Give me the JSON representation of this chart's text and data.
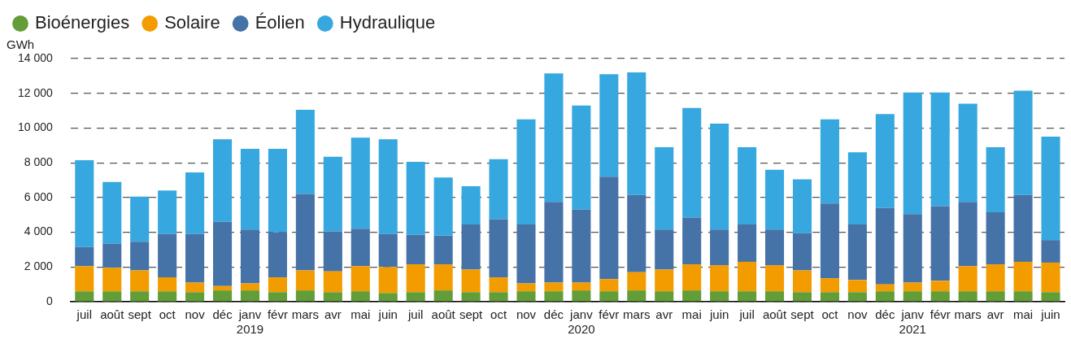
{
  "chart_data": {
    "type": "bar",
    "stacked": true,
    "ylabel": "GWh",
    "categories": [
      "juil",
      "août",
      "sept",
      "oct",
      "nov",
      "déc",
      "janv 2019",
      "févr",
      "mars",
      "avr",
      "mai",
      "juin",
      "juil",
      "août",
      "sept",
      "oct",
      "nov",
      "déc",
      "janv 2020",
      "févr",
      "mars",
      "avr",
      "mai",
      "juin",
      "juil",
      "août",
      "sept",
      "oct",
      "nov",
      "déc",
      "janv 2021",
      "févr",
      "mars",
      "avr",
      "mai",
      "juin"
    ],
    "series": [
      {
        "name": "Bioénergies",
        "color": "#629d38",
        "values": [
          600,
          600,
          600,
          600,
          550,
          650,
          650,
          550,
          650,
          550,
          600,
          500,
          550,
          650,
          550,
          550,
          600,
          600,
          650,
          600,
          650,
          600,
          650,
          600,
          600,
          600,
          550,
          550,
          550,
          600,
          600,
          600,
          600,
          600,
          600,
          550
        ]
      },
      {
        "name": "Solaire",
        "color": "#f39c00",
        "values": [
          1450,
          1350,
          1200,
          800,
          550,
          250,
          400,
          850,
          1150,
          1200,
          1450,
          1500,
          1600,
          1500,
          1300,
          850,
          450,
          500,
          450,
          700,
          1050,
          1250,
          1500,
          1500,
          1700,
          1500,
          1250,
          800,
          700,
          400,
          500,
          600,
          1450,
          1550,
          1700,
          1700
        ]
      },
      {
        "name": "Éolien",
        "color": "#4573a7",
        "values": [
          1100,
          1400,
          1650,
          2500,
          2800,
          3700,
          3100,
          2600,
          4400,
          2300,
          2150,
          1900,
          1700,
          1650,
          2600,
          3350,
          3400,
          4650,
          4200,
          5900,
          4450,
          2300,
          2700,
          2050,
          2150,
          2050,
          2150,
          4300,
          3200,
          4400,
          3950,
          4300,
          3700,
          3000,
          3850,
          1300
        ]
      },
      {
        "name": "Hydraulique",
        "color": "#37a8df",
        "values": [
          5000,
          3550,
          2600,
          2500,
          3550,
          4750,
          4650,
          4800,
          4850,
          4300,
          5250,
          5450,
          4200,
          3350,
          2200,
          3450,
          6050,
          7400,
          6000,
          5900,
          7050,
          4750,
          6300,
          6100,
          4450,
          3450,
          3100,
          4850,
          4150,
          5400,
          7000,
          6550,
          5650,
          3750,
          6000,
          5950
        ]
      }
    ],
    "ylim": [
      0,
      14000
    ],
    "yticks": [
      0,
      {
        "value": 2000,
        "label": "2 000"
      },
      {
        "value": 4000,
        "label": "4 000"
      },
      {
        "value": 6000,
        "label": "6 000"
      },
      {
        "value": 8000,
        "label": "8 000"
      },
      {
        "value": 10000,
        "label": "10 000"
      },
      {
        "value": 12000,
        "label": "12 000"
      },
      {
        "value": 14000,
        "label": "14 000"
      }
    ],
    "grid": "y",
    "legend": "top left"
  }
}
